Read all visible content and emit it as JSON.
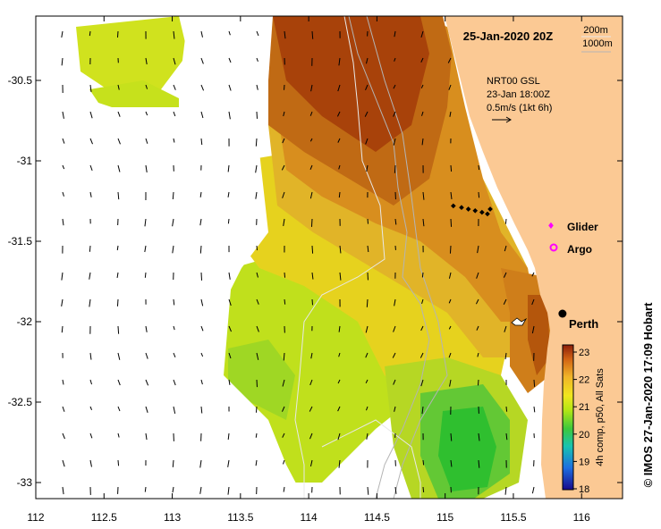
{
  "title": "25-Jan-2020 20Z",
  "isobaths": {
    "shallow": "200m",
    "deep": "1000m"
  },
  "current_note": {
    "line1": "NRT00 GSL",
    "line2": "23-Jan 18:00Z",
    "line3": "0.5m/s (1kt 6h)"
  },
  "legend": {
    "glider": "Glider",
    "argo": "Argo",
    "glider_color": "#ff00ff",
    "argo_color": "#ff00ff"
  },
  "city": {
    "name": "Perth",
    "lon": 115.86,
    "lat": -31.95
  },
  "axes": {
    "x_ticks": [
      {
        "v": 112,
        "label": "112"
      },
      {
        "v": 112.5,
        "label": "112.5"
      },
      {
        "v": 113,
        "label": "113"
      },
      {
        "v": 113.5,
        "label": "113.5"
      },
      {
        "v": 114,
        "label": "114"
      },
      {
        "v": 114.5,
        "label": "114.5"
      },
      {
        "v": 115,
        "label": "115"
      },
      {
        "v": 115.5,
        "label": "115.5"
      },
      {
        "v": 116,
        "label": "116"
      }
    ],
    "y_ticks": [
      {
        "v": -30.5,
        "label": "-30.5"
      },
      {
        "v": -31,
        "label": "-31"
      },
      {
        "v": -31.5,
        "label": "-31.5"
      },
      {
        "v": -32,
        "label": "-32"
      },
      {
        "v": -32.5,
        "label": "-32.5"
      },
      {
        "v": -33,
        "label": "-33"
      }
    ],
    "lon_range": [
      112,
      116.3
    ],
    "lat_range": [
      -33.1,
      -30.1
    ]
  },
  "colorbar": {
    "ticks": [
      "23",
      "22",
      "21",
      "20",
      "19",
      "18"
    ],
    "label": "4h comp, p50, All Sats",
    "range": [
      18,
      23
    ],
    "colors": [
      "#1a0a8c",
      "#1d6ee0",
      "#18c4b0",
      "#3cc83c",
      "#b4e614",
      "#f0e61e",
      "#f0b428",
      "#d26414",
      "#8c1e0a"
    ]
  },
  "credit": "© IMOS 27-Jan-2020 17:09 Hobart",
  "glider_track": [
    {
      "lon": 115.06,
      "lat": -31.28
    },
    {
      "lon": 115.12,
      "lat": -31.29
    },
    {
      "lon": 115.17,
      "lat": -31.3
    },
    {
      "lon": 115.22,
      "lat": -31.31
    },
    {
      "lon": 115.27,
      "lat": -31.32
    },
    {
      "lon": 115.31,
      "lat": -31.33
    },
    {
      "lon": 115.33,
      "lat": -31.3
    }
  ],
  "land_color": "#fbc994",
  "sst_colors": {
    "warm": "#b4500a",
    "mid": "#dc8c1e",
    "cool": "#e6d21e",
    "cold": "#b9e11c",
    "coldest": "#2fbf2f"
  }
}
